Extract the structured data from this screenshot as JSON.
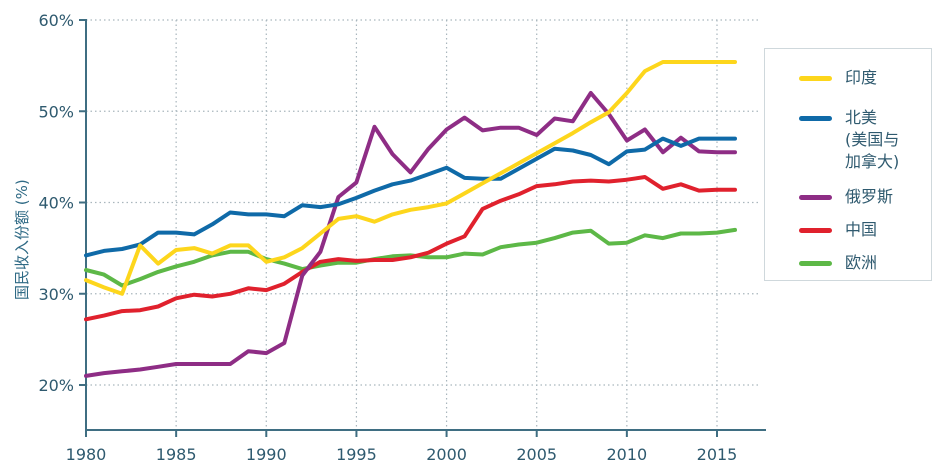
{
  "chart_data": {
    "type": "line",
    "title": "",
    "xlabel": "",
    "ylabel": "国民收入份额 (%)",
    "xlim": [
      1980,
      2016
    ],
    "ylim": [
      15,
      60
    ],
    "x_ticks": [
      1980,
      1985,
      1990,
      1995,
      2000,
      2005,
      2010,
      2015
    ],
    "x_tick_labels": [
      "1980",
      "1985",
      "1990",
      "1995",
      "2000",
      "2005",
      "2010",
      "2015"
    ],
    "y_ticks": [
      20,
      30,
      40,
      50,
      60
    ],
    "y_tick_labels": [
      "20%",
      "30%",
      "40%",
      "50%",
      "60%"
    ],
    "grid": true,
    "legend_position": "right",
    "x": [
      1980,
      1981,
      1982,
      1983,
      1984,
      1985,
      1986,
      1987,
      1988,
      1989,
      1990,
      1991,
      1992,
      1993,
      1994,
      1995,
      1996,
      1997,
      1998,
      1999,
      2000,
      2001,
      2002,
      2003,
      2004,
      2005,
      2006,
      2007,
      2008,
      2009,
      2010,
      2011,
      2012,
      2013,
      2014,
      2015,
      2016
    ],
    "series": [
      {
        "name": "印度",
        "key": "india",
        "color": "#fdd61c",
        "values": [
          31.5,
          30.7,
          30.0,
          35.3,
          33.3,
          34.8,
          35.0,
          34.4,
          35.3,
          35.3,
          33.5,
          34.0,
          35.0,
          36.6,
          38.2,
          38.5,
          37.9,
          38.7,
          39.2,
          39.5,
          39.9,
          41.0,
          42.1,
          43.2,
          44.3,
          45.4,
          46.5,
          47.6,
          48.8,
          49.9,
          52.0,
          54.4,
          55.4,
          55.4,
          55.4,
          55.4,
          55.4
        ]
      },
      {
        "name": "北美\n(美国与\n加拿大)",
        "key": "north-america",
        "color": "#0f6aa8",
        "values": [
          34.2,
          34.7,
          34.9,
          35.4,
          36.7,
          36.7,
          36.5,
          37.6,
          38.9,
          38.7,
          38.7,
          38.5,
          39.7,
          39.5,
          39.8,
          40.5,
          41.3,
          42.0,
          42.4,
          43.1,
          43.8,
          42.7,
          42.6,
          42.6,
          43.7,
          44.8,
          45.9,
          45.7,
          45.2,
          44.2,
          45.6,
          45.8,
          47.0,
          46.2,
          47.0,
          47.0,
          47.0
        ]
      },
      {
        "name": "俄罗斯",
        "key": "russia",
        "color": "#8e2d85",
        "values": [
          21.0,
          21.3,
          21.5,
          21.7,
          22.0,
          22.3,
          22.3,
          22.3,
          22.3,
          23.7,
          23.5,
          24.6,
          32.0,
          34.6,
          40.6,
          42.2,
          48.3,
          45.3,
          43.3,
          45.9,
          48.0,
          49.3,
          47.9,
          48.2,
          48.2,
          47.4,
          49.2,
          48.9,
          52.0,
          49.7,
          46.8,
          48.0,
          45.5,
          47.1,
          45.6,
          45.5,
          45.5
        ]
      },
      {
        "name": "中国",
        "key": "china",
        "color": "#e0212d",
        "values": [
          27.2,
          27.6,
          28.1,
          28.2,
          28.6,
          29.5,
          29.9,
          29.7,
          30.0,
          30.6,
          30.4,
          31.1,
          32.4,
          33.5,
          33.8,
          33.6,
          33.7,
          33.7,
          34.0,
          34.5,
          35.5,
          36.3,
          39.3,
          40.2,
          40.9,
          41.8,
          42.0,
          42.3,
          42.4,
          42.3,
          42.5,
          42.8,
          41.5,
          42.0,
          41.3,
          41.4,
          41.4
        ]
      },
      {
        "name": "欧洲",
        "key": "europe",
        "color": "#5db847",
        "values": [
          32.6,
          32.1,
          30.9,
          31.6,
          32.4,
          33.0,
          33.5,
          34.2,
          34.6,
          34.6,
          33.8,
          33.3,
          32.7,
          33.1,
          33.4,
          33.4,
          33.8,
          34.1,
          34.2,
          34.0,
          34.0,
          34.4,
          34.3,
          35.1,
          35.4,
          35.6,
          36.1,
          36.7,
          36.9,
          35.5,
          35.6,
          36.4,
          36.1,
          36.6,
          36.6,
          36.7,
          37.0
        ]
      }
    ],
    "axis_color": "#3f6e82",
    "grid_color": "#a9b6bd"
  },
  "legend": {
    "items": [
      {
        "label": "印度",
        "color": "#fdd61c"
      },
      {
        "label": "北美\n(美国与\n加拿大)",
        "color": "#0f6aa8"
      },
      {
        "label": "俄罗斯",
        "color": "#8e2d85"
      },
      {
        "label": "中国",
        "color": "#e0212d"
      },
      {
        "label": "欧洲",
        "color": "#5db847"
      }
    ]
  }
}
